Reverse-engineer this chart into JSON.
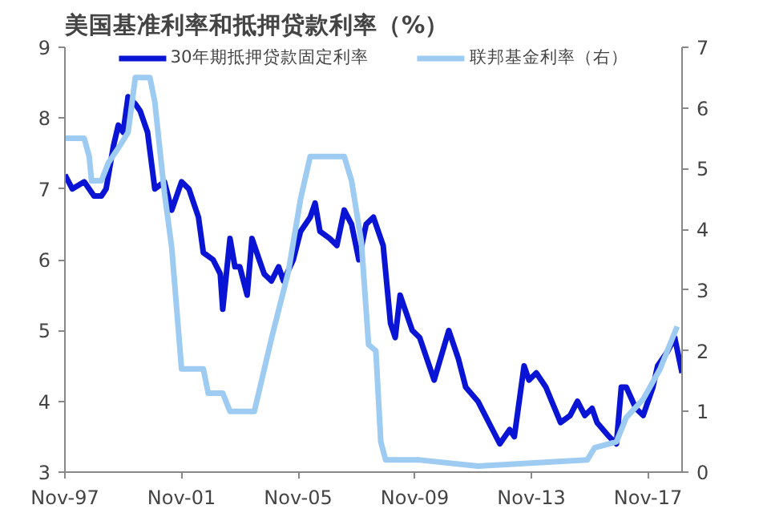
{
  "chart_data": {
    "type": "line",
    "title": "美国基准利率和抵押贷款利率（%）",
    "xlim": [
      "1997-11",
      "2019-01"
    ],
    "xticks": [
      {
        "value": "1997-11",
        "label": "Nov-97"
      },
      {
        "value": "2001-11",
        "label": "Nov-01"
      },
      {
        "value": "2005-11",
        "label": "Nov-05"
      },
      {
        "value": "2009-11",
        "label": "Nov-09"
      },
      {
        "value": "2013-11",
        "label": "Nov-13"
      },
      {
        "value": "2017-11",
        "label": "Nov-17"
      }
    ],
    "ylim": [
      3,
      9
    ],
    "yticks": [
      3,
      4,
      5,
      6,
      7,
      8,
      9
    ],
    "y2lim": [
      0,
      7
    ],
    "y2ticks": [
      0,
      1,
      2,
      3,
      4,
      5,
      6,
      7
    ],
    "grid": false,
    "legend": "top",
    "series": [
      {
        "name": "30年期抵押贷款固定利率",
        "color": "#0a14d4",
        "x": [
          "1997-11",
          "1998-02",
          "1998-07",
          "1998-09",
          "1998-11",
          "1999-02",
          "1999-04",
          "1999-07",
          "1999-09",
          "1999-11",
          "2000-01",
          "2000-04",
          "2000-06",
          "2000-09",
          "2000-12",
          "2001-04",
          "2001-07",
          "2001-11",
          "2002-02",
          "2002-06",
          "2002-08",
          "2002-12",
          "2003-03",
          "2003-04",
          "2003-07",
          "2003-09",
          "2003-11",
          "2004-02",
          "2004-04",
          "2004-07",
          "2004-09",
          "2004-12",
          "2005-03",
          "2005-05",
          "2005-09",
          "2005-12",
          "2006-04",
          "2006-06",
          "2006-08",
          "2006-12",
          "2007-03",
          "2007-06",
          "2007-09",
          "2007-12",
          "2008-03",
          "2008-06",
          "2008-07",
          "2008-10",
          "2009-01",
          "2009-03",
          "2009-05",
          "2009-10",
          "2010-01",
          "2010-07",
          "2011-01",
          "2011-05",
          "2011-08",
          "2012-01",
          "2012-07",
          "2012-10",
          "2013-02",
          "2013-04",
          "2013-08",
          "2013-10",
          "2014-01",
          "2014-05",
          "2014-11",
          "2015-03",
          "2015-06",
          "2015-09",
          "2015-12",
          "2016-02",
          "2016-07",
          "2016-10",
          "2016-12",
          "2017-02",
          "2017-06",
          "2017-09",
          "2018-01",
          "2018-03",
          "2018-07",
          "2018-10",
          "2019-01"
        ],
        "values": [
          7.2,
          7.0,
          7.1,
          7.0,
          6.9,
          6.9,
          7.0,
          7.6,
          7.9,
          7.8,
          8.3,
          8.2,
          8.1,
          7.8,
          7.0,
          7.1,
          6.7,
          7.1,
          7.0,
          6.6,
          6.1,
          6.0,
          5.8,
          5.3,
          6.3,
          5.9,
          5.9,
          5.5,
          6.3,
          6.0,
          5.8,
          5.7,
          5.9,
          5.7,
          6.0,
          6.4,
          6.6,
          6.8,
          6.4,
          6.3,
          6.2,
          6.7,
          6.5,
          6.0,
          6.5,
          6.6,
          6.5,
          6.2,
          5.1,
          4.9,
          5.5,
          5.0,
          4.9,
          4.3,
          5.0,
          4.6,
          4.2,
          4.0,
          3.6,
          3.4,
          3.6,
          3.5,
          4.5,
          4.3,
          4.4,
          4.2,
          3.7,
          3.8,
          4.0,
          3.8,
          3.9,
          3.7,
          3.5,
          3.4,
          4.2,
          4.2,
          3.9,
          3.8,
          4.2,
          4.5,
          4.7,
          4.9,
          4.4
        ]
      },
      {
        "name": "联邦基金利率（右）",
        "color": "#9dcbf2",
        "axis": "y2",
        "x": [
          "1997-11",
          "1998-07",
          "1998-09",
          "1998-10",
          "1999-02",
          "1999-05",
          "1999-10",
          "2000-01",
          "2000-04",
          "2000-10",
          "2000-12",
          "2001-04",
          "2001-07",
          "2001-11",
          "2002-08",
          "2002-10",
          "2003-04",
          "2003-07",
          "2004-05",
          "2004-12",
          "2005-07",
          "2005-12",
          "2006-04",
          "2007-06",
          "2007-09",
          "2008-01",
          "2008-04",
          "2008-07",
          "2008-09",
          "2008-11",
          "2010-01",
          "2012-01",
          "2015-10",
          "2016-01",
          "2016-10",
          "2017-02",
          "2017-09",
          "2018-04",
          "2018-11"
        ],
        "values": [
          5.5,
          5.5,
          5.2,
          4.8,
          4.8,
          5.1,
          5.4,
          5.6,
          6.5,
          6.5,
          6.1,
          4.6,
          3.7,
          1.7,
          1.7,
          1.3,
          1.3,
          1.0,
          1.0,
          2.2,
          3.3,
          4.5,
          5.2,
          5.2,
          4.8,
          3.8,
          2.1,
          2.0,
          0.5,
          0.2,
          0.2,
          0.1,
          0.2,
          0.4,
          0.5,
          0.9,
          1.2,
          1.7,
          2.4
        ]
      }
    ]
  }
}
